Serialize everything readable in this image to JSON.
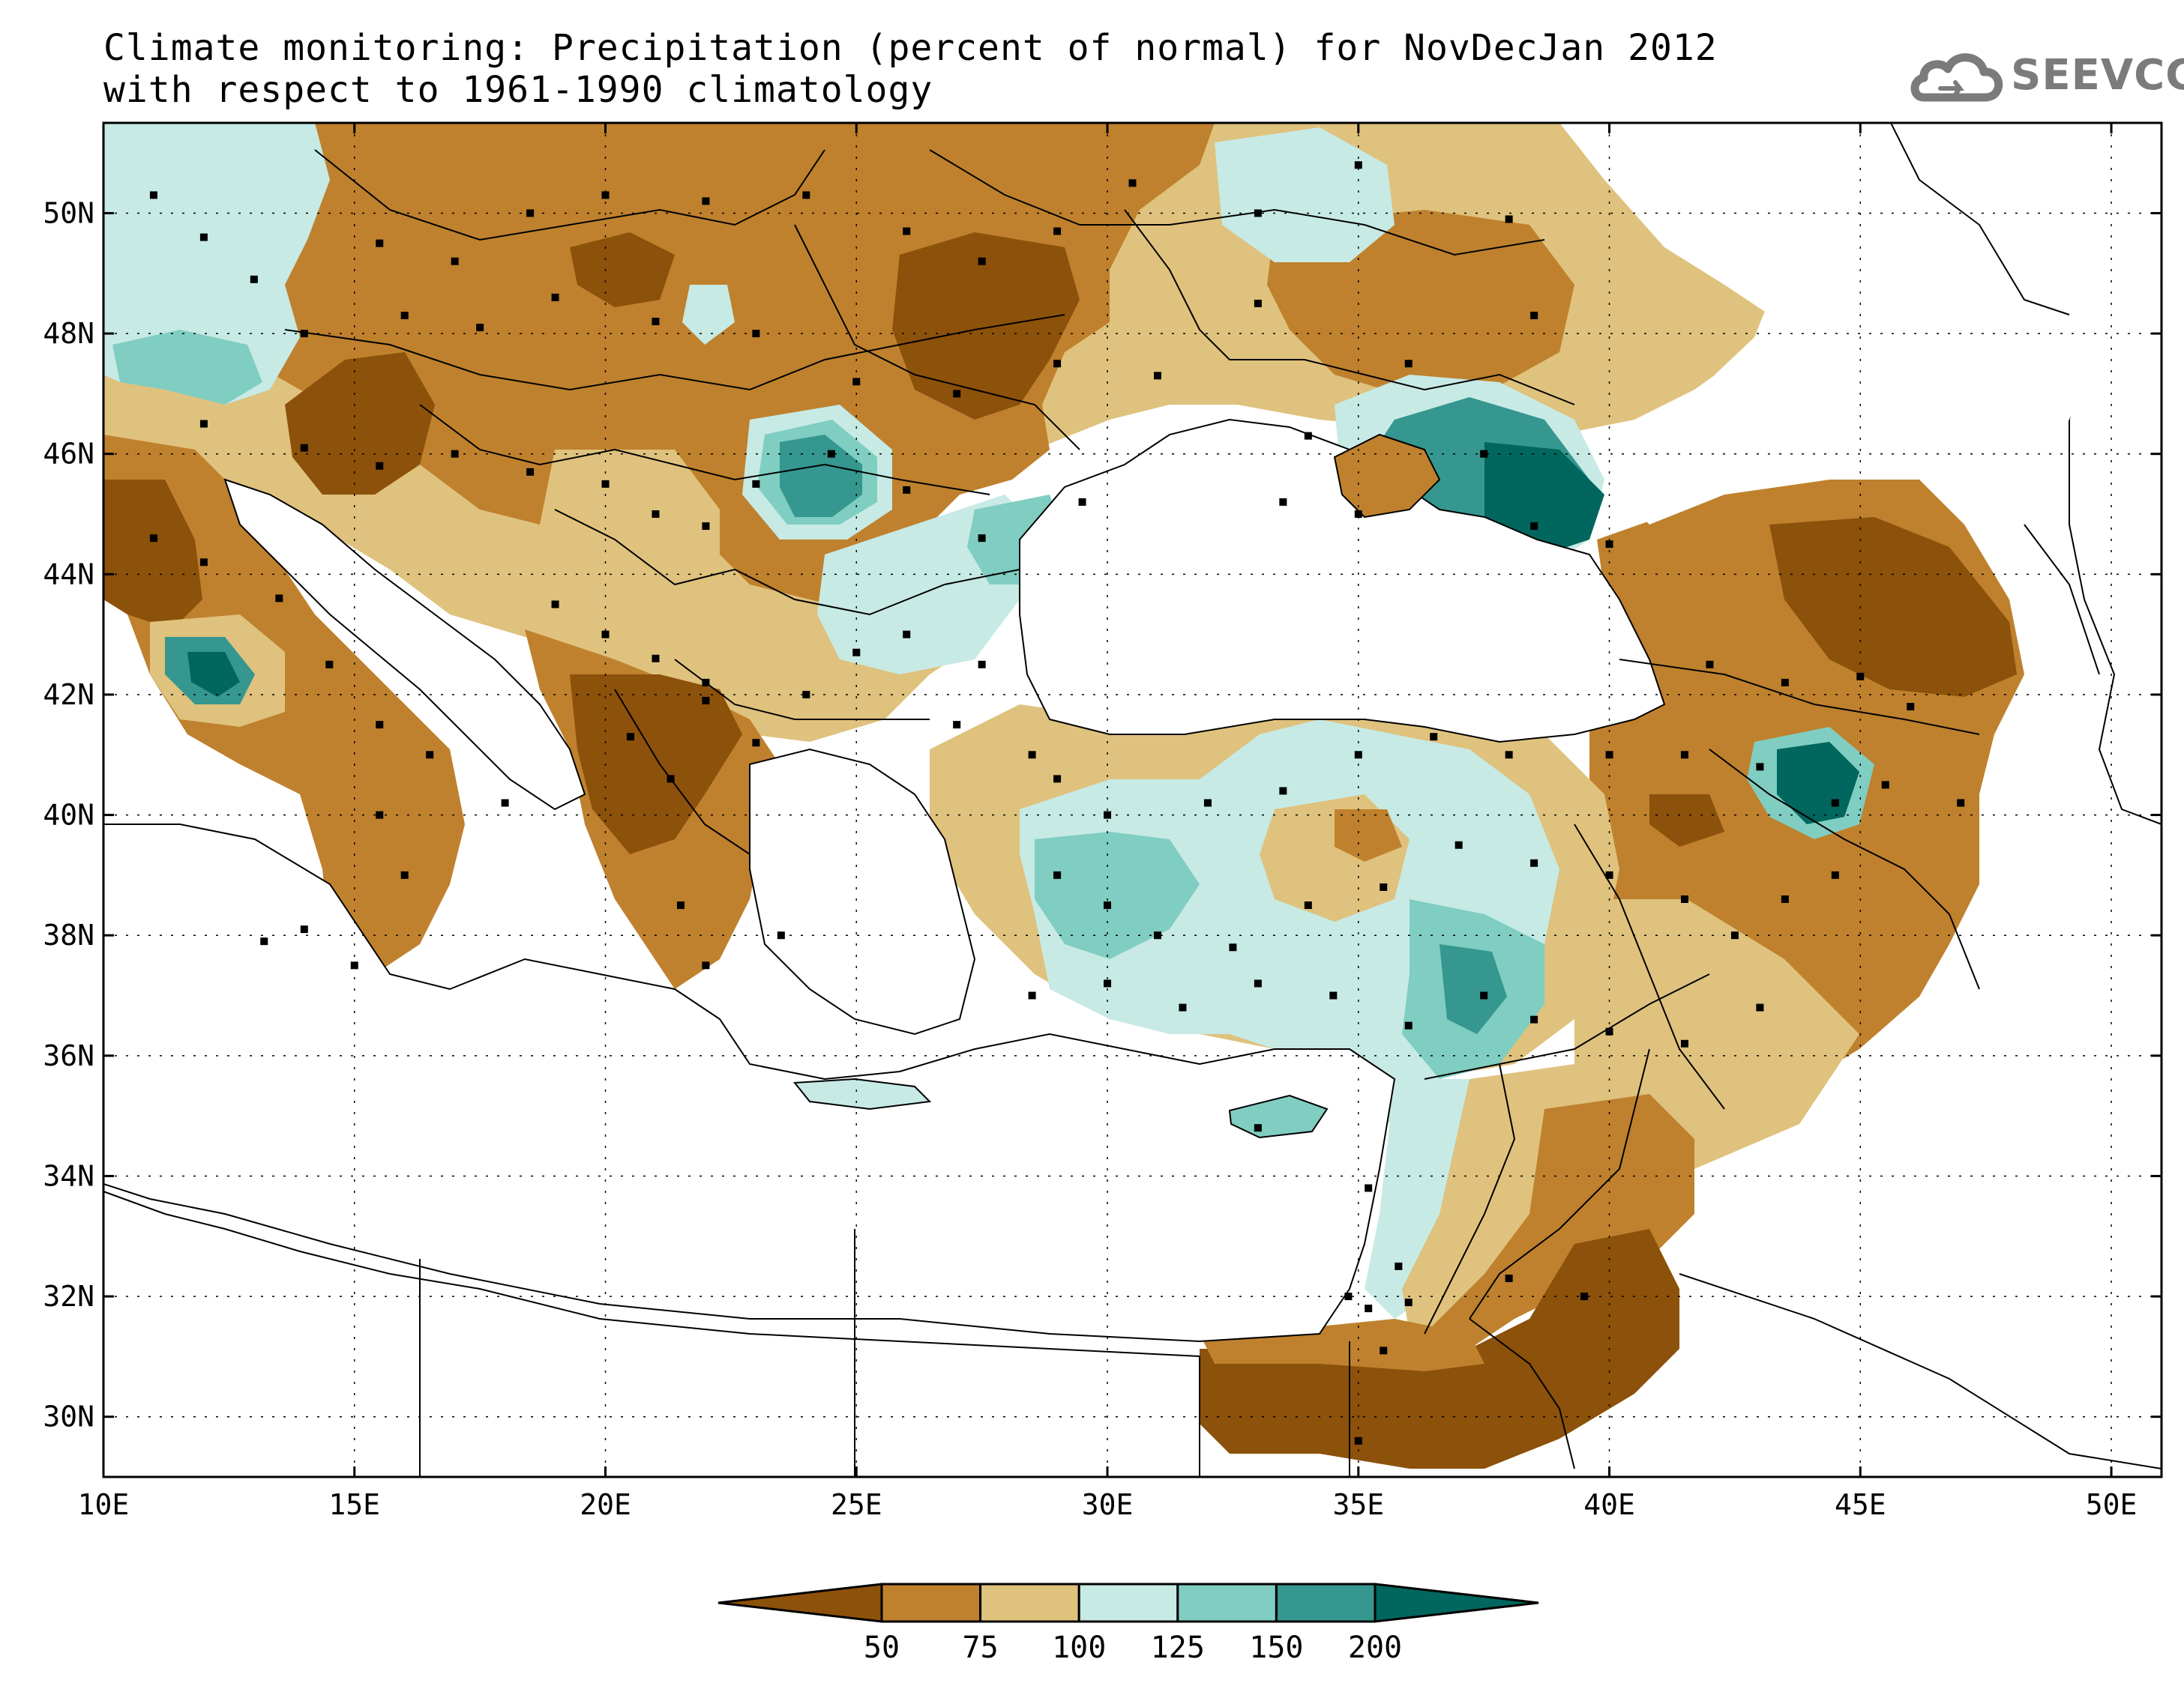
{
  "title": {
    "line1": "Climate monitoring: Precipitation (percent of normal) for NovDecJan 2012",
    "line2": "with respect to 1961-1990 climatology"
  },
  "logo": {
    "text": "SEEVCCC",
    "icon": "cloud-logo-icon"
  },
  "map": {
    "lon_range": [
      10,
      51
    ],
    "lat_range": [
      29,
      51.5
    ],
    "lon_ticks": [
      {
        "value": 10,
        "label": "10E"
      },
      {
        "value": 15,
        "label": "15E"
      },
      {
        "value": 20,
        "label": "20E"
      },
      {
        "value": 25,
        "label": "25E"
      },
      {
        "value": 30,
        "label": "30E"
      },
      {
        "value": 35,
        "label": "35E"
      },
      {
        "value": 40,
        "label": "40E"
      },
      {
        "value": 45,
        "label": "45E"
      },
      {
        "value": 50,
        "label": "50E"
      }
    ],
    "lat_ticks": [
      {
        "value": 30,
        "label": "30N"
      },
      {
        "value": 32,
        "label": "32N"
      },
      {
        "value": 34,
        "label": "34N"
      },
      {
        "value": 36,
        "label": "36N"
      },
      {
        "value": 38,
        "label": "38N"
      },
      {
        "value": 40,
        "label": "40N"
      },
      {
        "value": 42,
        "label": "42N"
      },
      {
        "value": 44,
        "label": "44N"
      },
      {
        "value": 46,
        "label": "46N"
      },
      {
        "value": 48,
        "label": "48N"
      },
      {
        "value": 50,
        "label": "50N"
      }
    ],
    "grid": "dotted"
  },
  "colorbar": {
    "boundaries": [
      "50",
      "75",
      "100",
      "125",
      "150",
      "200"
    ],
    "colors": [
      "#8c510a",
      "#bf812d",
      "#dfc27d",
      "#c7eae5",
      "#80cdc1",
      "#35978f",
      "#01665e"
    ]
  }
}
